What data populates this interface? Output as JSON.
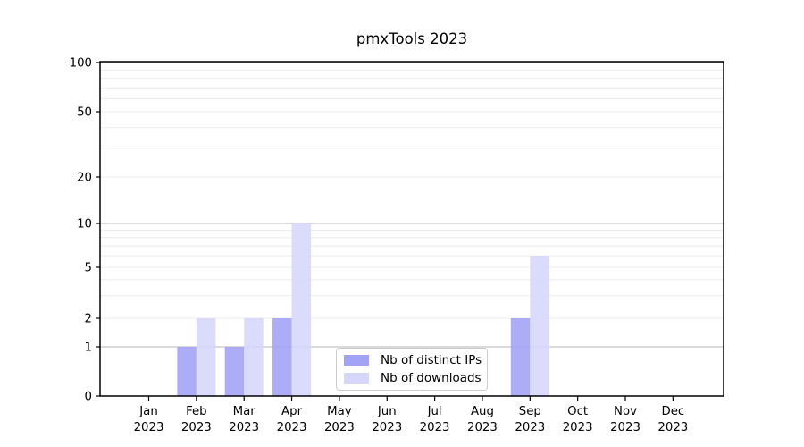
{
  "title": "pmxTools 2023",
  "chart_data": {
    "type": "bar",
    "title": "pmxTools 2023",
    "categories": [
      "Jan",
      "Feb",
      "Mar",
      "Apr",
      "May",
      "Jun",
      "Jul",
      "Aug",
      "Sep",
      "Oct",
      "Nov",
      "Dec"
    ],
    "category_year": "2023",
    "series": [
      {
        "name": "Nb of distinct IPs",
        "color": "#a2a2f6",
        "values": [
          0,
          1,
          1,
          2,
          0,
          0,
          0,
          0,
          2,
          0,
          0,
          0
        ]
      },
      {
        "name": "Nb of downloads",
        "color": "#d6d6fa",
        "values": [
          0,
          2,
          2,
          10,
          0,
          0,
          0,
          0,
          6,
          0,
          0,
          0
        ]
      }
    ],
    "yscale": "log-like",
    "ylim": [
      0,
      100
    ],
    "yticks": [
      0,
      1,
      2,
      5,
      10,
      20,
      50,
      100
    ],
    "ytick_labels": [
      "0",
      "1",
      "2",
      "5",
      "10",
      "20",
      "50",
      "100"
    ],
    "major_yticks": [
      1,
      10,
      100
    ],
    "minor_yticks": [
      3,
      4,
      6,
      7,
      8,
      9,
      30,
      40,
      60,
      70,
      80,
      90
    ],
    "grid": true,
    "legend_position": "lower center"
  },
  "colors": {
    "grid_major": "#b6b6b6",
    "grid_minor": "#ebebeb",
    "axis": "#000000",
    "text": "#000000",
    "legend_border": "#cccccc",
    "background": "#ffffff"
  }
}
